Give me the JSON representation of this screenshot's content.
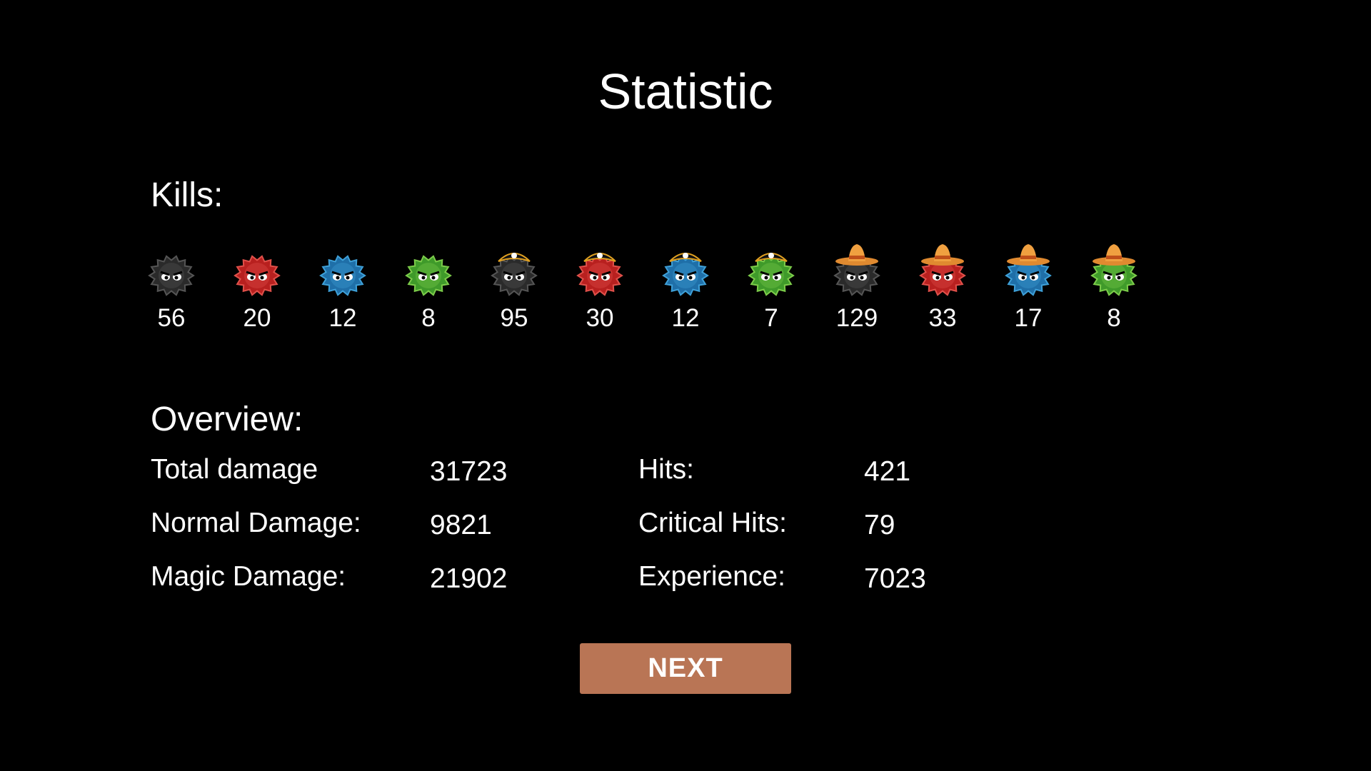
{
  "title": "Statistic",
  "kills": {
    "label": "Kills:",
    "counts": [
      56,
      20,
      12,
      8,
      95,
      30,
      12,
      7,
      129,
      33,
      17,
      8
    ]
  },
  "overview": {
    "label": "Overview:",
    "rows": [
      [
        "Total damage",
        31723,
        "Hits:",
        421
      ],
      [
        "Normal Damage:",
        9821,
        "Critical Hits:",
        79
      ],
      [
        "Magic Damage:",
        21902,
        "Experience:",
        7023
      ]
    ]
  },
  "button": "NEXT"
}
